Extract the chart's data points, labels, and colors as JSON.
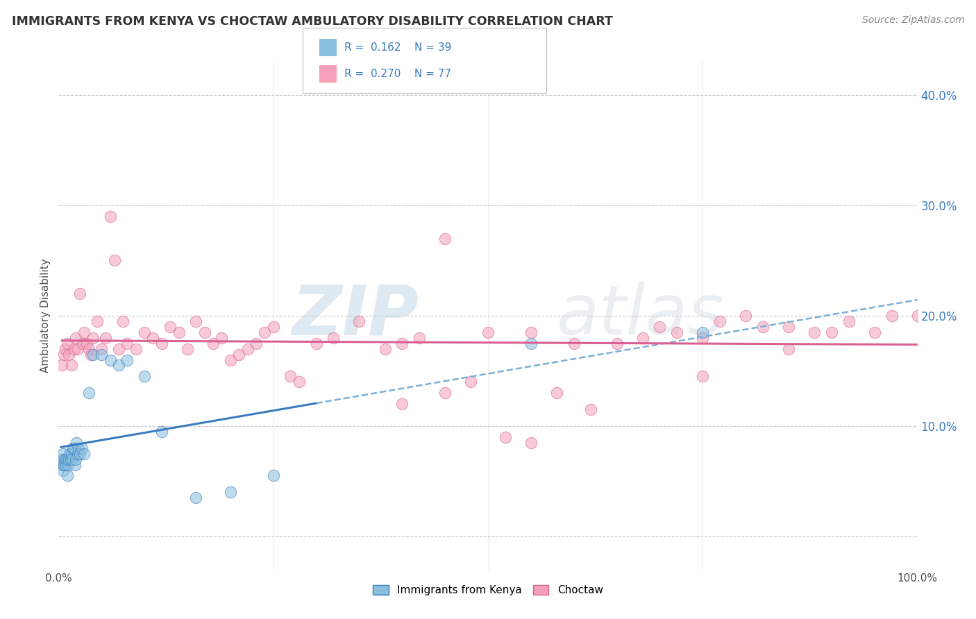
{
  "title": "IMMIGRANTS FROM KENYA VS CHOCTAW AMBULATORY DISABILITY CORRELATION CHART",
  "source": "Source: ZipAtlas.com",
  "ylabel": "Ambulatory Disability",
  "xlim": [
    0,
    100
  ],
  "ylim": [
    -3,
    43
  ],
  "yticks": [
    0,
    10,
    20,
    30,
    40
  ],
  "ytick_labels": [
    "",
    "10.0%",
    "20.0%",
    "30.0%",
    "40.0%"
  ],
  "legend_r1": "R =  0.162",
  "legend_n1": "N = 39",
  "legend_r2": "R =  0.270",
  "legend_n2": "N = 77",
  "legend_label1": "Immigrants from Kenya",
  "legend_label2": "Choctaw",
  "blue_scatter_color": "#89bfdf",
  "pink_scatter_color": "#f4a0b8",
  "blue_line_color": "#3a7bbf",
  "pink_line_color": "#d96090",
  "blue_dash_color": "#7ab0d8",
  "title_color": "#333333",
  "source_color": "#888888",
  "legend_text_color": "#3a7bbf",
  "legend_r_color": "#333333",
  "watermark_color": "#c8d8e8",
  "kenya_x": [
    0.3,
    0.4,
    0.5,
    0.5,
    0.6,
    0.7,
    0.8,
    0.9,
    1.0,
    1.0,
    1.1,
    1.2,
    1.3,
    1.4,
    1.5,
    1.6,
    1.7,
    1.8,
    1.9,
    2.0,
    2.1,
    2.2,
    2.3,
    2.5,
    2.7,
    3.0,
    3.5,
    4.0,
    5.0,
    6.0,
    7.0,
    8.0,
    10.0,
    12.0,
    16.0,
    20.0,
    25.0,
    55.0,
    75.0
  ],
  "kenya_y": [
    6.5,
    7.0,
    6.0,
    7.5,
    6.5,
    7.0,
    6.5,
    7.0,
    5.5,
    7.0,
    6.5,
    7.0,
    7.5,
    7.0,
    7.5,
    7.0,
    8.0,
    8.0,
    6.5,
    7.0,
    8.5,
    7.5,
    8.0,
    7.5,
    8.0,
    7.5,
    13.0,
    16.5,
    16.5,
    16.0,
    15.5,
    16.0,
    14.5,
    9.5,
    3.5,
    4.0,
    5.5,
    17.5,
    18.5
  ],
  "choctaw_x": [
    0.4,
    0.6,
    0.8,
    1.0,
    1.2,
    1.5,
    1.8,
    2.0,
    2.2,
    2.5,
    2.8,
    3.0,
    3.3,
    3.5,
    3.8,
    4.0,
    4.5,
    5.0,
    5.5,
    6.0,
    6.5,
    7.0,
    7.5,
    8.0,
    9.0,
    10.0,
    11.0,
    12.0,
    13.0,
    14.0,
    15.0,
    16.0,
    17.0,
    18.0,
    19.0,
    20.0,
    21.0,
    22.0,
    23.0,
    24.0,
    25.0,
    27.0,
    28.0,
    30.0,
    32.0,
    35.0,
    38.0,
    40.0,
    42.0,
    45.0,
    50.0,
    55.0,
    58.0,
    60.0,
    65.0,
    68.0,
    70.0,
    72.0,
    75.0,
    77.0,
    80.0,
    82.0,
    85.0,
    88.0,
    90.0,
    92.0,
    95.0,
    97.0,
    100.0,
    40.0,
    45.0,
    48.0,
    52.0,
    55.0,
    62.0,
    75.0,
    85.0
  ],
  "choctaw_y": [
    15.5,
    16.5,
    17.0,
    17.5,
    16.5,
    15.5,
    17.0,
    18.0,
    17.0,
    22.0,
    17.5,
    18.5,
    17.5,
    17.0,
    16.5,
    18.0,
    19.5,
    17.0,
    18.0,
    29.0,
    25.0,
    17.0,
    19.5,
    17.5,
    17.0,
    18.5,
    18.0,
    17.5,
    19.0,
    18.5,
    17.0,
    19.5,
    18.5,
    17.5,
    18.0,
    16.0,
    16.5,
    17.0,
    17.5,
    18.5,
    19.0,
    14.5,
    14.0,
    17.5,
    18.0,
    19.5,
    17.0,
    17.5,
    18.0,
    27.0,
    18.5,
    18.5,
    13.0,
    17.5,
    17.5,
    18.0,
    19.0,
    18.5,
    18.0,
    19.5,
    20.0,
    19.0,
    17.0,
    18.5,
    18.5,
    19.5,
    18.5,
    20.0,
    20.0,
    12.0,
    13.0,
    14.0,
    9.0,
    8.5,
    11.5,
    14.5,
    19.0
  ]
}
